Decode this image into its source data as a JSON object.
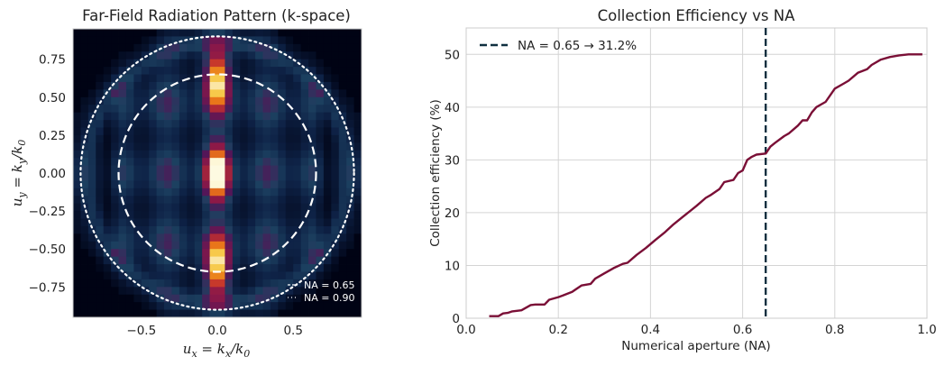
{
  "chart_data": [
    {
      "type": "heatmap",
      "title": "Far-Field Radiation Pattern (k-space)",
      "xlabel": {
        "main": "u",
        "sub": "x",
        "mid": " = k",
        "sub2": "x",
        "end": "/k",
        "sub3": "0"
      },
      "ylabel": {
        "main": "u",
        "sub": "y",
        "mid": " = k",
        "sub2": "y",
        "end": "/k",
        "sub3": "0"
      },
      "xlim": [
        -0.95,
        0.95
      ],
      "ylim": [
        -0.95,
        0.95
      ],
      "xticks": [
        -0.5,
        0.0,
        0.5
      ],
      "xtick_labels": [
        "−0.5",
        "0.0",
        "0.5"
      ],
      "yticks": [
        0.75,
        0.5,
        0.25,
        0.0,
        -0.25,
        -0.5,
        -0.75
      ],
      "ytick_labels": [
        "0.75",
        "0.50",
        "0.25",
        "0.00",
        "−0.25",
        "−0.50",
        "−0.75"
      ],
      "colormap": "inferno-like",
      "grid_size": 38,
      "na_circles": [
        {
          "na": 0.65,
          "style": "dashed",
          "label": "NA = 0.65"
        },
        {
          "na": 0.9,
          "style": "dotted",
          "label": "NA = 0.90"
        }
      ],
      "legend_position": "lower-right"
    },
    {
      "type": "line",
      "title": "Collection Efficiency vs NA",
      "xlabel": "Numerical aperture (NA)",
      "ylabel": "Collection efficiency (%)",
      "xlim": [
        0.0,
        1.0
      ],
      "ylim": [
        0,
        55
      ],
      "xticks": [
        0.0,
        0.2,
        0.4,
        0.6,
        0.8,
        1.0
      ],
      "xtick_labels": [
        "0.0",
        "0.2",
        "0.4",
        "0.6",
        "0.8",
        "1.0"
      ],
      "yticks": [
        0,
        10,
        20,
        30,
        40,
        50
      ],
      "ytick_labels": [
        "0",
        "10",
        "20",
        "30",
        "40",
        "50"
      ],
      "grid": true,
      "series": [
        {
          "name": "Collection efficiency",
          "color": "#7a0f36",
          "x": [
            0.05,
            0.07,
            0.08,
            0.09,
            0.1,
            0.12,
            0.14,
            0.15,
            0.17,
            0.18,
            0.2,
            0.21,
            0.23,
            0.25,
            0.27,
            0.28,
            0.3,
            0.32,
            0.34,
            0.35,
            0.37,
            0.39,
            0.41,
            0.43,
            0.45,
            0.47,
            0.5,
            0.52,
            0.53,
            0.55,
            0.56,
            0.58,
            0.59,
            0.6,
            0.61,
            0.62,
            0.63,
            0.65,
            0.66,
            0.67,
            0.69,
            0.7,
            0.72,
            0.73,
            0.74,
            0.75,
            0.76,
            0.78,
            0.8,
            0.82,
            0.83,
            0.85,
            0.87,
            0.88,
            0.9,
            0.92,
            0.94,
            0.96,
            0.98,
            0.99
          ],
          "y": [
            0.4,
            0.4,
            0.9,
            1.0,
            1.3,
            1.5,
            2.5,
            2.6,
            2.6,
            3.5,
            4.0,
            4.3,
            5.0,
            6.2,
            6.5,
            7.5,
            8.5,
            9.5,
            10.3,
            10.5,
            12.0,
            13.3,
            14.8,
            16.2,
            17.8,
            19.2,
            21.3,
            22.8,
            23.3,
            24.5,
            25.8,
            26.2,
            27.5,
            28.0,
            30.0,
            30.6,
            31.0,
            31.2,
            32.5,
            33.2,
            34.5,
            35.0,
            36.5,
            37.5,
            37.5,
            39.0,
            40.0,
            41.0,
            43.5,
            44.5,
            45.0,
            46.5,
            47.2,
            48.0,
            49.0,
            49.5,
            49.8,
            50.0,
            50.0,
            50.0
          ]
        }
      ],
      "vline": {
        "x": 0.65,
        "color": "#0f2f3f",
        "style": "dashed"
      },
      "legend": {
        "label": "NA = 0.65  →  31.2%",
        "position": "top-left"
      }
    }
  ]
}
